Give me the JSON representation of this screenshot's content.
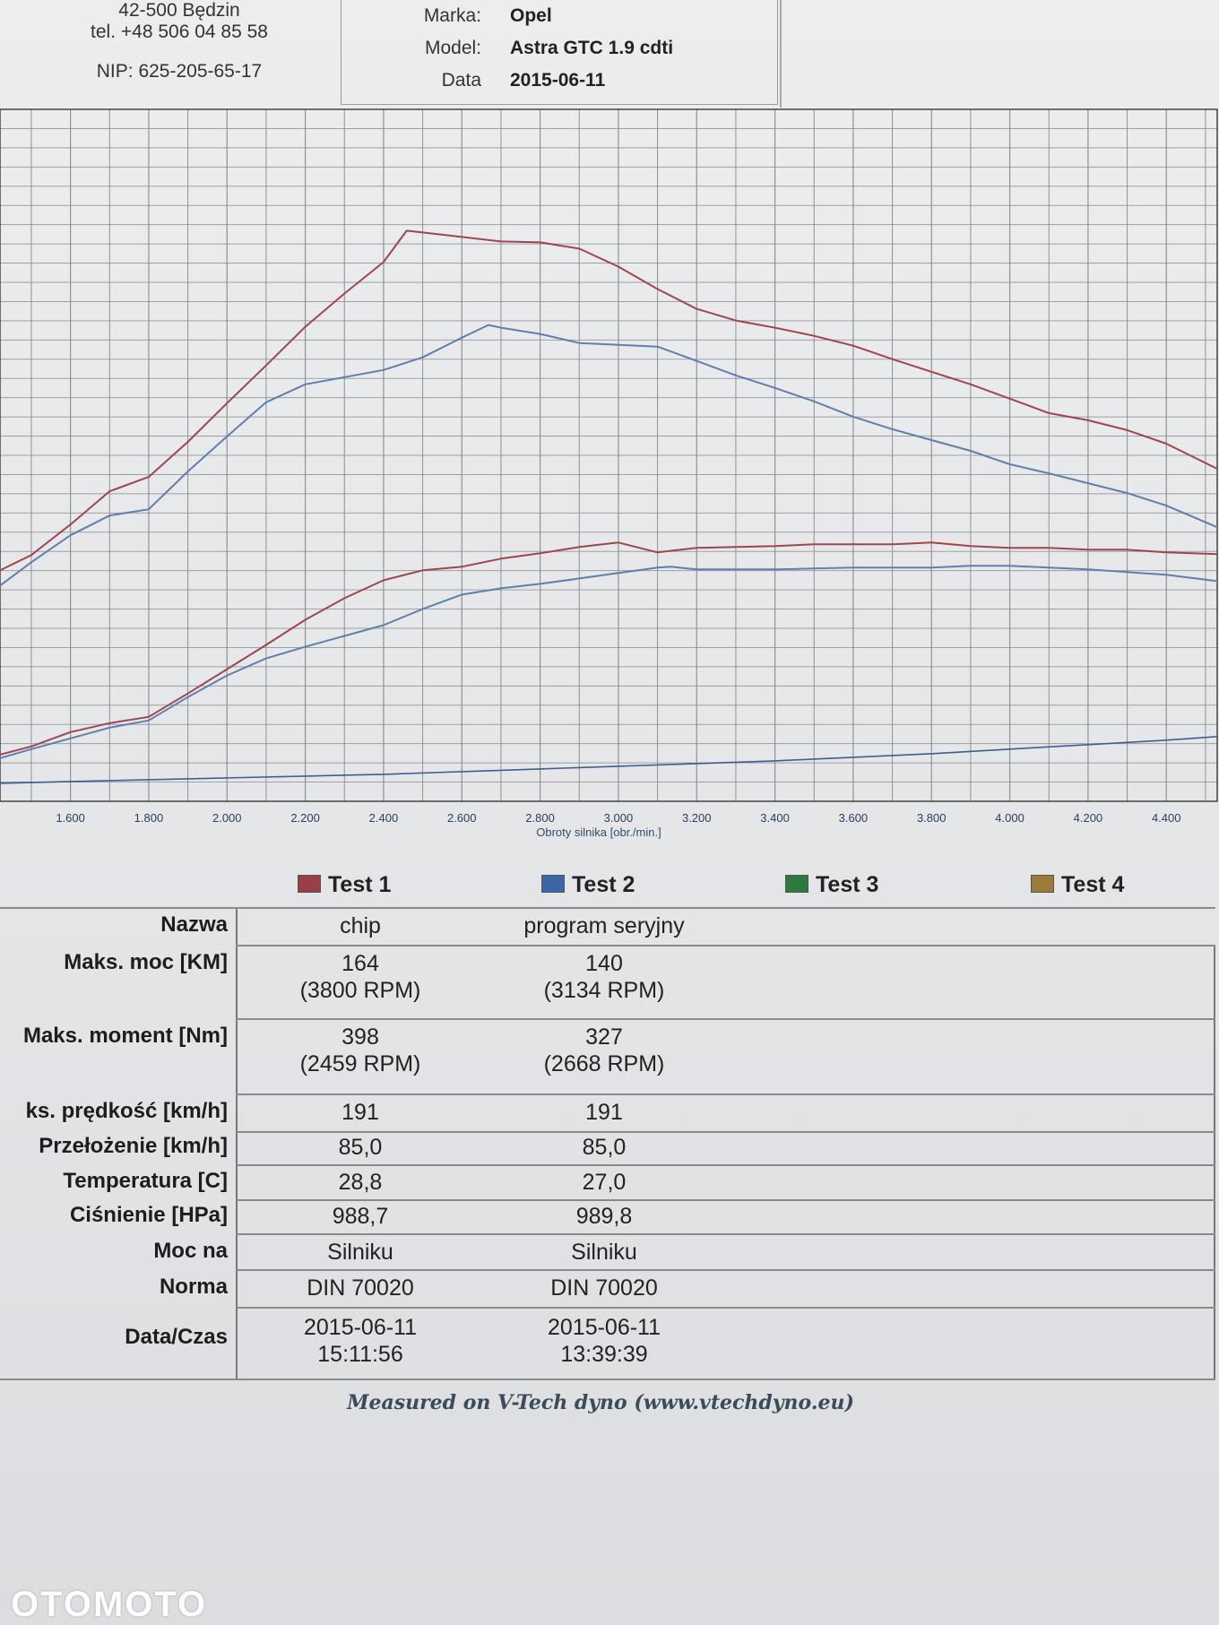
{
  "header": {
    "address_line": "42-500 Będzin",
    "phone": "tel. +48 506 04 85 58",
    "nip": "NIP: 625-205-65-17",
    "marka_label": "Marka:",
    "marka_value": "Opel",
    "model_label": "Model:",
    "model_value": "Astra GTC 1.9 cdti",
    "data_label": "Data",
    "data_value": "2015-06-11"
  },
  "chart_data": {
    "type": "line",
    "xlabel": "Obroty silnika [obr./min.]",
    "x_ticks": [
      "1.600",
      "1.800",
      "2.000",
      "2.200",
      "2.400",
      "2.600",
      "2.800",
      "3.000",
      "3.200",
      "3.400",
      "3.600",
      "3.800",
      "4.000",
      "4.200",
      "4.400"
    ],
    "xlim": [
      1420,
      4530
    ],
    "grid": true,
    "series": [
      {
        "name": "Test 1",
        "kind": "torque",
        "color": "#a0454f",
        "points": [
          [
            1420,
            513
          ],
          [
            1500,
            496
          ],
          [
            1600,
            462
          ],
          [
            1700,
            425
          ],
          [
            1800,
            409
          ],
          [
            1900,
            370
          ],
          [
            2000,
            327
          ],
          [
            2100,
            285
          ],
          [
            2200,
            242
          ],
          [
            2300,
            205
          ],
          [
            2400,
            170
          ],
          [
            2459,
            135
          ],
          [
            2500,
            137
          ],
          [
            2600,
            142
          ],
          [
            2700,
            147
          ],
          [
            2800,
            148
          ],
          [
            2900,
            155
          ],
          [
            3000,
            175
          ],
          [
            3100,
            200
          ],
          [
            3200,
            222
          ],
          [
            3300,
            235
          ],
          [
            3400,
            243
          ],
          [
            3500,
            252
          ],
          [
            3600,
            263
          ],
          [
            3700,
            278
          ],
          [
            3800,
            292
          ],
          [
            3900,
            306
          ],
          [
            4000,
            322
          ],
          [
            4100,
            338
          ],
          [
            4200,
            346
          ],
          [
            4300,
            357
          ],
          [
            4400,
            372
          ],
          [
            4530,
            400
          ]
        ]
      },
      {
        "name": "Test 2",
        "kind": "torque",
        "color": "#5f7fae",
        "points": [
          [
            1420,
            530
          ],
          [
            1500,
            504
          ],
          [
            1600,
            474
          ],
          [
            1700,
            452
          ],
          [
            1800,
            445
          ],
          [
            1900,
            403
          ],
          [
            2000,
            364
          ],
          [
            2100,
            326
          ],
          [
            2200,
            306
          ],
          [
            2300,
            298
          ],
          [
            2400,
            290
          ],
          [
            2500,
            276
          ],
          [
            2600,
            254
          ],
          [
            2668,
            240
          ],
          [
            2700,
            243
          ],
          [
            2800,
            250
          ],
          [
            2900,
            260
          ],
          [
            3000,
            262
          ],
          [
            3100,
            264
          ],
          [
            3200,
            280
          ],
          [
            3300,
            296
          ],
          [
            3400,
            310
          ],
          [
            3500,
            325
          ],
          [
            3600,
            342
          ],
          [
            3700,
            356
          ],
          [
            3800,
            368
          ],
          [
            3900,
            380
          ],
          [
            4000,
            395
          ],
          [
            4100,
            405
          ],
          [
            4200,
            416
          ],
          [
            4300,
            427
          ],
          [
            4400,
            441
          ],
          [
            4530,
            465
          ]
        ]
      },
      {
        "name": "Test 1",
        "kind": "power",
        "color": "#a0454f",
        "points": [
          [
            1420,
            718
          ],
          [
            1500,
            709
          ],
          [
            1600,
            693
          ],
          [
            1700,
            683
          ],
          [
            1800,
            676
          ],
          [
            1900,
            650
          ],
          [
            2000,
            623
          ],
          [
            2100,
            596
          ],
          [
            2200,
            568
          ],
          [
            2300,
            544
          ],
          [
            2400,
            524
          ],
          [
            2500,
            513
          ],
          [
            2600,
            509
          ],
          [
            2700,
            500
          ],
          [
            2800,
            494
          ],
          [
            2900,
            487
          ],
          [
            3000,
            482
          ],
          [
            3100,
            493
          ],
          [
            3200,
            488
          ],
          [
            3300,
            487
          ],
          [
            3400,
            486
          ],
          [
            3500,
            484
          ],
          [
            3600,
            484
          ],
          [
            3700,
            484
          ],
          [
            3800,
            482
          ],
          [
            3900,
            486
          ],
          [
            4000,
            488
          ],
          [
            4100,
            488
          ],
          [
            4200,
            490
          ],
          [
            4300,
            490
          ],
          [
            4400,
            493
          ],
          [
            4530,
            495
          ]
        ]
      },
      {
        "name": "Test 2",
        "kind": "power",
        "color": "#5f7fae",
        "points": [
          [
            1420,
            722
          ],
          [
            1500,
            712
          ],
          [
            1600,
            700
          ],
          [
            1700,
            688
          ],
          [
            1800,
            680
          ],
          [
            1900,
            654
          ],
          [
            2000,
            630
          ],
          [
            2100,
            611
          ],
          [
            2200,
            598
          ],
          [
            2300,
            586
          ],
          [
            2400,
            574
          ],
          [
            2500,
            556
          ],
          [
            2600,
            540
          ],
          [
            2700,
            533
          ],
          [
            2800,
            528
          ],
          [
            2900,
            522
          ],
          [
            3000,
            516
          ],
          [
            3100,
            510
          ],
          [
            3134,
            509
          ],
          [
            3200,
            512
          ],
          [
            3300,
            512
          ],
          [
            3400,
            512
          ],
          [
            3500,
            511
          ],
          [
            3600,
            510
          ],
          [
            3700,
            510
          ],
          [
            3800,
            510
          ],
          [
            3900,
            508
          ],
          [
            4000,
            508
          ],
          [
            4100,
            510
          ],
          [
            4200,
            512
          ],
          [
            4300,
            515
          ],
          [
            4400,
            518
          ],
          [
            4530,
            525
          ]
        ]
      },
      {
        "kind": "auxiliary",
        "color": "#3e5f8f",
        "points": [
          [
            1420,
            750
          ],
          [
            1600,
            748
          ],
          [
            1800,
            746
          ],
          [
            2000,
            744
          ],
          [
            2200,
            742
          ],
          [
            2400,
            740
          ],
          [
            2600,
            737
          ],
          [
            2800,
            734
          ],
          [
            3000,
            731
          ],
          [
            3200,
            728
          ],
          [
            3400,
            725
          ],
          [
            3600,
            721
          ],
          [
            3800,
            717
          ],
          [
            4000,
            712
          ],
          [
            4200,
            707
          ],
          [
            4400,
            702
          ],
          [
            4530,
            698
          ]
        ]
      }
    ]
  },
  "legend": [
    {
      "label": "Test 1",
      "color": "#9a3e48"
    },
    {
      "label": "Test 2",
      "color": "#3c64a8"
    },
    {
      "label": "Test 3",
      "color": "#2e7a3e"
    },
    {
      "label": "Test 4",
      "color": "#9c7a3a"
    }
  ],
  "table": {
    "rows": [
      {
        "label": "Nazwa",
        "t1": "chip",
        "t2": "program seryjny"
      },
      {
        "label": "Maks. moc [KM]",
        "t1": "164",
        "t1b": "(3800 RPM)",
        "t2": "140",
        "t2b": "(3134 RPM)"
      },
      {
        "label": "Maks. moment [Nm]",
        "t1": "398",
        "t1b": "(2459 RPM)",
        "t2": "327",
        "t2b": "(2668 RPM)"
      },
      {
        "label": "ks. prędkość [km/h]",
        "t1": "191",
        "t2": "191"
      },
      {
        "label": "Przełożenie [km/h]",
        "t1": "85,0",
        "t2": "85,0"
      },
      {
        "label": "Temperatura [C]",
        "t1": "28,8",
        "t2": "27,0"
      },
      {
        "label": "Ciśnienie [HPa]",
        "t1": "988,7",
        "t2": "989,8"
      },
      {
        "label": "Moc na",
        "t1": "Silniku",
        "t2": "Silniku"
      },
      {
        "label": "Norma",
        "t1": "DIN 70020",
        "t2": "DIN 70020"
      },
      {
        "label": "Data/Czas",
        "t1": "2015-06-11",
        "t1b": "15:11:56",
        "t2": "2015-06-11",
        "t2b": "13:39:39"
      }
    ]
  },
  "footer": "Measured on V-Tech dyno (www.vtechdyno.eu)",
  "watermark": "OTOMOTO"
}
